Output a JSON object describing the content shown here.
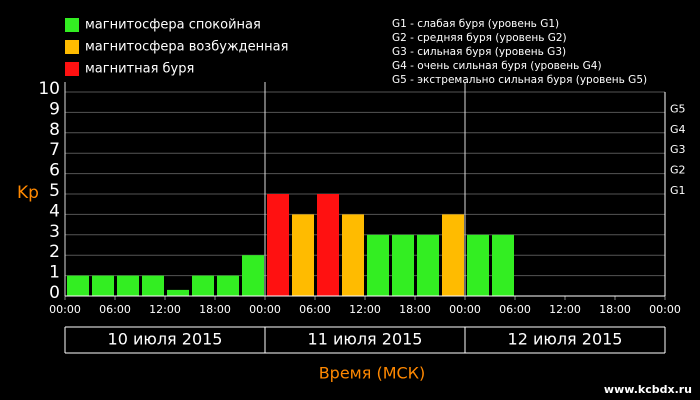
{
  "chart_data": {
    "type": "bar",
    "y_label": "Kp",
    "x_label": "Время (МСК)",
    "legend": [
      {
        "name": "магнитосфера спокойная",
        "color": "#33ee22"
      },
      {
        "name": "магнитосфера возбужденная",
        "color": "#ffbb00"
      },
      {
        "name": "магнитная буря",
        "color": "#ff1111"
      }
    ],
    "storm_legend": [
      "G1 - слабая буря (уровень G1)",
      "G2 - средняя буря (уровень G2)",
      "G3 - сильная буря (уровень G3)",
      "G4 - очень сильная буря (уровень G4)",
      "G5 - экстремально сильная буря (уровень G5)"
    ],
    "x": [
      0,
      3,
      6,
      9,
      12,
      15,
      18,
      21,
      24,
      27,
      30,
      33,
      36,
      39,
      42,
      45,
      48,
      51,
      54,
      57,
      60,
      63,
      66,
      69
    ],
    "values": [
      1,
      1,
      1,
      1,
      0.3,
      1,
      1,
      2,
      5,
      4,
      5,
      4,
      3,
      3,
      3,
      4,
      3,
      3,
      null,
      null,
      null,
      null,
      null,
      null
    ],
    "colors": [
      "#33ee22",
      "#33ee22",
      "#33ee22",
      "#33ee22",
      "#33ee22",
      "#33ee22",
      "#33ee22",
      "#33ee22",
      "#ff1111",
      "#ffbb00",
      "#ff1111",
      "#ffbb00",
      "#33ee22",
      "#33ee22",
      "#33ee22",
      "#ffbb00",
      "#33ee22",
      "#33ee22",
      null,
      null,
      null,
      null,
      null,
      null
    ],
    "bar_width": 3,
    "xlim": [
      0,
      72
    ],
    "xticks": [
      {
        "value": 0,
        "label": "00:00"
      },
      {
        "value": 6,
        "label": "06:00"
      },
      {
        "value": 12,
        "label": "12:00"
      },
      {
        "value": 18,
        "label": "18:00"
      },
      {
        "value": 24,
        "label": "00:00"
      },
      {
        "value": 30,
        "label": "06:00"
      },
      {
        "value": 36,
        "label": "12:00"
      },
      {
        "value": 42,
        "label": "18:00"
      },
      {
        "value": 48,
        "label": "00:00"
      },
      {
        "value": 54,
        "label": "06:00"
      },
      {
        "value": 60,
        "label": "12:00"
      },
      {
        "value": 66,
        "label": "18:00"
      },
      {
        "value": 72,
        "label": "00:00"
      }
    ],
    "ylim": [
      0,
      10
    ],
    "yticks": [
      0,
      1,
      2,
      3,
      4,
      5,
      6,
      7,
      8,
      9,
      10
    ],
    "y2ticks": [
      {
        "value": 5,
        "label": "G1"
      },
      {
        "value": 6,
        "label": "G2"
      },
      {
        "value": 7,
        "label": "G3"
      },
      {
        "value": 8,
        "label": "G4"
      },
      {
        "value": 9,
        "label": "G5"
      }
    ],
    "days": [
      {
        "label": "10 июля 2015",
        "start": 0,
        "end": 24
      },
      {
        "label": "11 июля 2015",
        "start": 24,
        "end": 48
      },
      {
        "label": "12 июля 2015",
        "start": 48,
        "end": 72
      }
    ],
    "grid": true,
    "watermark": "www.kcbdx.ru"
  }
}
